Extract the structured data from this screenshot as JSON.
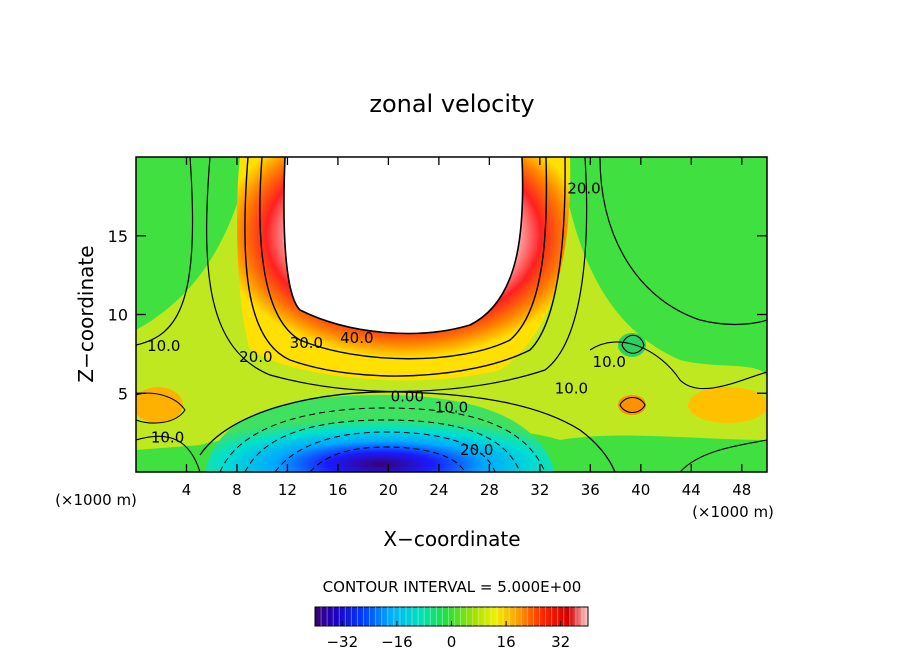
{
  "chart_data": {
    "type": "heatmap",
    "title": "zonal velocity",
    "xlabel": "X−coordinate",
    "ylabel": "Z−coordinate",
    "x_unit": "(×1000 m)",
    "x_unit_right": "(×1000 m)",
    "xlim": [
      0,
      50
    ],
    "ylim": [
      0,
      20
    ],
    "x_ticks": [
      "4",
      "8",
      "12",
      "16",
      "20",
      "24",
      "28",
      "32",
      "36",
      "40",
      "44",
      "48"
    ],
    "y_ticks": [
      "5",
      "10",
      "15"
    ],
    "contour_interval_text": "CONTOUR INTERVAL = 5.000E+00",
    "colorbar": {
      "min": -40,
      "max": 40,
      "ticks": [
        "−32",
        "−16",
        "0",
        "16",
        "32"
      ],
      "colormap": "rainbow"
    },
    "contour_labels": [
      {
        "text": "40.0",
        "x": 17.5,
        "z": 8.5
      },
      {
        "text": "30.0",
        "x": 13.5,
        "z": 8.2
      },
      {
        "text": "20.0",
        "x": 9.5,
        "z": 7.3
      },
      {
        "text": "20.0",
        "x": 35.5,
        "z": 18.0
      },
      {
        "text": "10.0",
        "x": 2.2,
        "z": 8.0
      },
      {
        "text": "10.0",
        "x": 37.5,
        "z": 7.0
      },
      {
        "text": "10.0",
        "x": 34.5,
        "z": 5.3
      },
      {
        "text": "10.0",
        "x": 2.5,
        "z": 2.2
      },
      {
        "text": "0.00",
        "x": 21.5,
        "z": 4.8
      },
      {
        "text": "10.0",
        "x": 25.0,
        "z": 4.1
      },
      {
        "text": "20.0",
        "x": 27.0,
        "z": 1.4
      }
    ],
    "features": [
      {
        "kind": "max",
        "x": 20,
        "z": 16,
        "value": 45
      },
      {
        "kind": "min",
        "x": 19,
        "z": 1,
        "value": -40
      }
    ]
  }
}
